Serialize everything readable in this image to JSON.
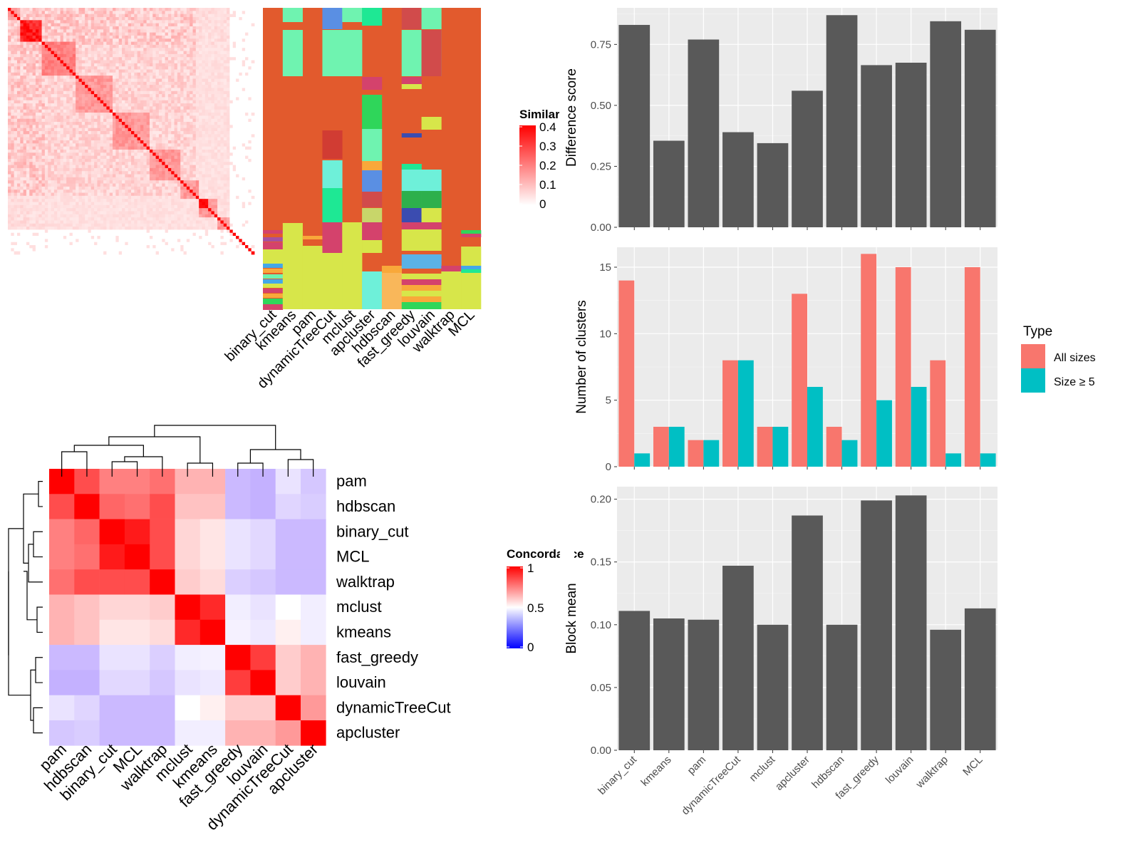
{
  "panels": {
    "similarity_legend_title": "Similarity",
    "concordance_legend_title": "Concordance",
    "type_legend_title": "Type"
  },
  "colors": {
    "bar_gray": "#595959",
    "panel_bg": "#ebebeb",
    "all_sizes": "#f8766d",
    "size_ge5": "#00bfc4",
    "sim_high": "#ff0000",
    "conc_high": "#ff0000",
    "conc_mid": "#ffffff",
    "conc_low": "#0000ff"
  },
  "chart_data": [
    {
      "type": "heatmap",
      "id": "similarity",
      "legend_title": "Similarity",
      "legend_ticks": [
        "0",
        "0.1",
        "0.2",
        "0.3",
        "0.4"
      ],
      "value_range": [
        0,
        0.4
      ],
      "n": 80,
      "note_values": "dense similarity matrix of 80 items; block-diagonal structure, top-left block strongest"
    },
    {
      "type": "heatmap",
      "id": "cluster-assignments",
      "columns": [
        "binary_cut",
        "kmeans",
        "pam",
        "dynamicTreeCut",
        "mclust",
        "apcluster",
        "hdbscan",
        "fast_greedy",
        "louvain",
        "walktrap",
        "MCL"
      ]
    },
    {
      "type": "heatmap",
      "id": "concordance",
      "legend_title": "Concordance",
      "legend_ticks": [
        "0",
        "0.5",
        "1"
      ],
      "value_range": [
        0,
        1
      ],
      "labels": [
        "pam",
        "hdbscan",
        "binary_cut",
        "MCL",
        "walktrap",
        "mclust",
        "kmeans",
        "fast_greedy",
        "louvain",
        "dynamicTreeCut",
        "apcluster"
      ],
      "matrix": [
        [
          1.0,
          0.85,
          0.75,
          0.75,
          0.78,
          0.65,
          0.65,
          0.25,
          0.22,
          0.4,
          0.3
        ],
        [
          0.85,
          1.0,
          0.8,
          0.78,
          0.85,
          0.62,
          0.62,
          0.25,
          0.22,
          0.35,
          0.32
        ],
        [
          0.75,
          0.8,
          1.0,
          0.95,
          0.85,
          0.58,
          0.55,
          0.4,
          0.36,
          0.25,
          0.25
        ],
        [
          0.75,
          0.78,
          0.95,
          1.0,
          0.85,
          0.58,
          0.55,
          0.4,
          0.36,
          0.25,
          0.25
        ],
        [
          0.78,
          0.85,
          0.85,
          0.85,
          1.0,
          0.6,
          0.57,
          0.33,
          0.3,
          0.25,
          0.25
        ],
        [
          0.65,
          0.62,
          0.58,
          0.58,
          0.6,
          1.0,
          0.92,
          0.44,
          0.4,
          0.5,
          0.44
        ],
        [
          0.65,
          0.62,
          0.55,
          0.55,
          0.57,
          0.92,
          1.0,
          0.45,
          0.42,
          0.53,
          0.44
        ],
        [
          0.25,
          0.25,
          0.4,
          0.4,
          0.33,
          0.44,
          0.45,
          1.0,
          0.88,
          0.6,
          0.65
        ],
        [
          0.22,
          0.22,
          0.36,
          0.36,
          0.3,
          0.4,
          0.42,
          0.88,
          1.0,
          0.6,
          0.65
        ],
        [
          0.4,
          0.35,
          0.25,
          0.25,
          0.25,
          0.5,
          0.53,
          0.6,
          0.6,
          1.0,
          0.7
        ],
        [
          0.3,
          0.32,
          0.25,
          0.25,
          0.25,
          0.44,
          0.44,
          0.65,
          0.65,
          0.7,
          1.0
        ]
      ]
    },
    {
      "type": "bar",
      "id": "difference-score",
      "categories": [
        "binary_cut",
        "kmeans",
        "pam",
        "dynamicTreeCut",
        "mclust",
        "apcluster",
        "hdbscan",
        "fast_greedy",
        "louvain",
        "walktrap",
        "MCL"
      ],
      "values": [
        0.83,
        0.355,
        0.77,
        0.39,
        0.345,
        0.56,
        0.87,
        0.665,
        0.675,
        0.845,
        0.81
      ],
      "ylabel": "Difference score",
      "ylim": [
        0,
        0.9
      ],
      "yticks": [
        "0.00",
        "0.25",
        "0.50",
        "0.75"
      ],
      "grid": true
    },
    {
      "type": "bar",
      "id": "number-of-clusters",
      "categories": [
        "binary_cut",
        "kmeans",
        "pam",
        "dynamicTreeCut",
        "mclust",
        "apcluster",
        "hdbscan",
        "fast_greedy",
        "louvain",
        "walktrap",
        "MCL"
      ],
      "series": [
        {
          "name": "All sizes",
          "values": [
            14,
            3,
            2,
            8,
            3,
            13,
            3,
            16,
            15,
            8,
            15
          ]
        },
        {
          "name": "Size ≥ 5",
          "values": [
            1,
            3,
            2,
            8,
            3,
            6,
            2,
            5,
            6,
            1,
            1
          ]
        }
      ],
      "ylabel": "Number of clusters",
      "ylim": [
        0,
        16.5
      ],
      "yticks": [
        "0",
        "5",
        "10",
        "15"
      ],
      "legend_title": "Type",
      "legend_position": "right",
      "grid": true
    },
    {
      "type": "bar",
      "id": "block-mean",
      "categories": [
        "binary_cut",
        "kmeans",
        "pam",
        "dynamicTreeCut",
        "mclust",
        "apcluster",
        "hdbscan",
        "fast_greedy",
        "louvain",
        "walktrap",
        "MCL"
      ],
      "values": [
        0.111,
        0.105,
        0.104,
        0.147,
        0.1,
        0.187,
        0.1,
        0.199,
        0.203,
        0.096,
        0.113
      ],
      "ylabel": "Block mean",
      "ylim": [
        0,
        0.21
      ],
      "yticks": [
        "0.00",
        "0.05",
        "0.10",
        "0.15",
        "0.20"
      ],
      "grid": true
    }
  ]
}
